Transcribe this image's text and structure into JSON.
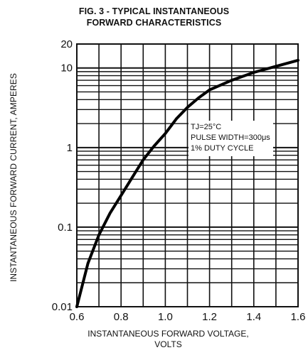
{
  "chart_data": {
    "type": "line",
    "title": "FIG. 3 - TYPICAL INSTANTANEOUS FORWARD CHARACTERISTICS",
    "title_lines": [
      "FIG. 3 - TYPICAL INSTANTANEOUS",
      "FORWARD CHARACTERISTICS"
    ],
    "xlabel": "INSTANTANEOUS FORWARD VOLTAGE, VOLTS",
    "xlabel_lines": [
      "INSTANTANEOUS FORWARD VOLTAGE,",
      "VOLTS"
    ],
    "ylabel": "INSTANTANEOUS FORWARD CURRENT, AMPERES",
    "xlim": [
      0.6,
      1.6
    ],
    "ylim": [
      0.01,
      20
    ],
    "yscale": "log",
    "grid": true,
    "x_ticks": [
      "0.6",
      "0.8",
      "1.0",
      "1.2",
      "1.4",
      "1.6"
    ],
    "y_ticks": [
      "0.01",
      "0.1",
      "1",
      "10",
      "20"
    ],
    "annotation": [
      "TJ=25°C",
      "PULSE WIDTH=300μs",
      "1% DUTY CYCLE"
    ],
    "series": [
      {
        "x": [
          0.6,
          0.65,
          0.7,
          0.75,
          0.8,
          0.85,
          0.9,
          0.95,
          1.0,
          1.05,
          1.1,
          1.15,
          1.2,
          1.3,
          1.4,
          1.5,
          1.6
        ],
        "values": [
          0.01,
          0.035,
          0.08,
          0.15,
          0.25,
          0.42,
          0.7,
          1.05,
          1.5,
          2.3,
          3.2,
          4.2,
          5.3,
          7.0,
          8.8,
          10.5,
          12.5
        ]
      }
    ]
  }
}
